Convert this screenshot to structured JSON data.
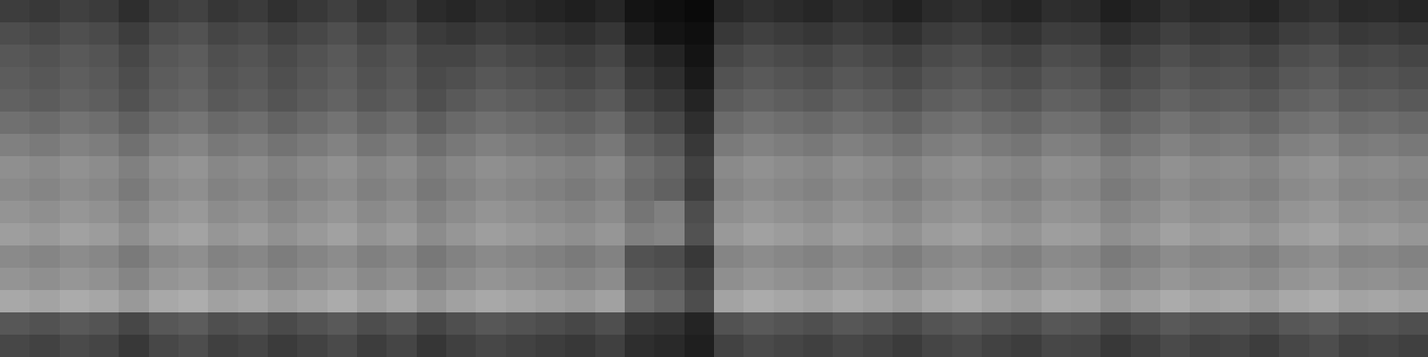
{
  "chart_data": {
    "type": "heatmap",
    "tick_labels": false,
    "zlim": [
      0,
      100
    ],
    "cells": [
      [
        24,
        22,
        25,
        23,
        18,
        24,
        26,
        21,
        23,
        19,
        22,
        25,
        20,
        23,
        17,
        15,
        18,
        16,
        14,
        12,
        15,
        8,
        6,
        4,
        16,
        19,
        17,
        15,
        18,
        16,
        13,
        17,
        19,
        16,
        14,
        18,
        17,
        12,
        15,
        19,
        16,
        17,
        14,
        18,
        20,
        16,
        17,
        15
      ],
      [
        30,
        28,
        31,
        29,
        24,
        30,
        32,
        27,
        29,
        25,
        28,
        31,
        26,
        29,
        23,
        21,
        24,
        22,
        20,
        18,
        21,
        12,
        8,
        6,
        22,
        25,
        23,
        21,
        24,
        22,
        19,
        23,
        25,
        22,
        20,
        24,
        23,
        18,
        21,
        25,
        22,
        23,
        20,
        24,
        26,
        22,
        23,
        21
      ],
      [
        34,
        32,
        35,
        33,
        28,
        34,
        36,
        31,
        33,
        29,
        32,
        35,
        30,
        33,
        27,
        27,
        30,
        28,
        26,
        24,
        27,
        18,
        14,
        8,
        28,
        31,
        29,
        27,
        30,
        28,
        25,
        29,
        31,
        28,
        26,
        30,
        29,
        24,
        27,
        31,
        28,
        29,
        26,
        30,
        32,
        28,
        29,
        27
      ],
      [
        36,
        34,
        37,
        35,
        30,
        36,
        38,
        33,
        35,
        31,
        34,
        37,
        32,
        35,
        29,
        31,
        34,
        32,
        30,
        28,
        31,
        22,
        18,
        10,
        32,
        35,
        33,
        31,
        34,
        32,
        29,
        33,
        35,
        32,
        30,
        34,
        33,
        28,
        31,
        35,
        32,
        33,
        30,
        34,
        36,
        32,
        33,
        31
      ],
      [
        38,
        36,
        39,
        37,
        32,
        38,
        40,
        35,
        37,
        33,
        36,
        39,
        34,
        37,
        31,
        35,
        38,
        36,
        34,
        32,
        35,
        26,
        22,
        14,
        36,
        39,
        37,
        35,
        38,
        36,
        33,
        37,
        39,
        36,
        34,
        38,
        37,
        32,
        35,
        39,
        36,
        37,
        34,
        38,
        40,
        36,
        37,
        35
      ],
      [
        44,
        42,
        45,
        43,
        38,
        44,
        46,
        41,
        43,
        39,
        42,
        45,
        40,
        43,
        37,
        41,
        44,
        42,
        40,
        38,
        41,
        32,
        28,
        18,
        42,
        45,
        43,
        41,
        44,
        42,
        39,
        43,
        45,
        42,
        40,
        44,
        43,
        38,
        41,
        45,
        42,
        43,
        40,
        44,
        46,
        42,
        43,
        41
      ],
      [
        50,
        48,
        51,
        49,
        44,
        50,
        52,
        47,
        49,
        45,
        48,
        51,
        46,
        49,
        43,
        47,
        50,
        48,
        46,
        44,
        47,
        38,
        34,
        22,
        48,
        51,
        49,
        47,
        50,
        48,
        45,
        49,
        51,
        48,
        46,
        50,
        49,
        44,
        47,
        51,
        48,
        49,
        46,
        50,
        52,
        48,
        49,
        47
      ],
      [
        56,
        54,
        57,
        55,
        50,
        56,
        58,
        53,
        55,
        51,
        54,
        57,
        52,
        55,
        49,
        53,
        56,
        54,
        52,
        50,
        53,
        44,
        40,
        26,
        54,
        57,
        55,
        53,
        56,
        54,
        51,
        55,
        57,
        54,
        52,
        56,
        55,
        50,
        53,
        57,
        54,
        55,
        52,
        56,
        58,
        54,
        55,
        53
      ],
      [
        54,
        52,
        55,
        53,
        48,
        54,
        56,
        51,
        53,
        49,
        52,
        55,
        50,
        53,
        47,
        51,
        54,
        52,
        50,
        48,
        51,
        42,
        38,
        24,
        52,
        55,
        53,
        51,
        54,
        52,
        49,
        53,
        55,
        52,
        50,
        54,
        53,
        48,
        51,
        55,
        52,
        53,
        50,
        54,
        56,
        52,
        53,
        51
      ],
      [
        58,
        56,
        59,
        57,
        52,
        58,
        60,
        55,
        57,
        53,
        56,
        59,
        54,
        57,
        51,
        55,
        58,
        56,
        54,
        52,
        55,
        46,
        50,
        30,
        56,
        59,
        57,
        55,
        58,
        56,
        53,
        57,
        59,
        56,
        54,
        58,
        57,
        52,
        55,
        59,
        56,
        57,
        54,
        58,
        60,
        56,
        57,
        55
      ],
      [
        62,
        60,
        63,
        61,
        56,
        62,
        64,
        59,
        61,
        57,
        60,
        63,
        58,
        61,
        55,
        59,
        62,
        60,
        58,
        56,
        59,
        50,
        52,
        32,
        60,
        63,
        61,
        59,
        62,
        60,
        57,
        61,
        63,
        60,
        58,
        62,
        61,
        56,
        59,
        63,
        60,
        61,
        58,
        62,
        64,
        60,
        61,
        59
      ],
      [
        54,
        52,
        55,
        53,
        48,
        54,
        56,
        51,
        53,
        49,
        52,
        55,
        50,
        53,
        47,
        51,
        54,
        52,
        50,
        48,
        51,
        32,
        30,
        22,
        52,
        55,
        53,
        51,
        54,
        52,
        49,
        53,
        55,
        52,
        50,
        54,
        53,
        48,
        51,
        55,
        52,
        53,
        50,
        54,
        56,
        52,
        53,
        51
      ],
      [
        58,
        56,
        59,
        57,
        52,
        58,
        60,
        55,
        57,
        53,
        56,
        59,
        54,
        57,
        51,
        55,
        58,
        56,
        54,
        52,
        55,
        36,
        34,
        26,
        56,
        59,
        57,
        55,
        58,
        56,
        53,
        57,
        59,
        56,
        54,
        58,
        57,
        52,
        55,
        59,
        56,
        57,
        54,
        58,
        60,
        56,
        57,
        55
      ],
      [
        66,
        64,
        67,
        65,
        60,
        66,
        68,
        63,
        65,
        61,
        64,
        67,
        62,
        65,
        59,
        63,
        66,
        64,
        62,
        60,
        63,
        44,
        40,
        30,
        64,
        67,
        65,
        63,
        66,
        64,
        61,
        65,
        67,
        64,
        62,
        66,
        65,
        60,
        63,
        67,
        64,
        65,
        62,
        66,
        68,
        64,
        65,
        63
      ],
      [
        34,
        32,
        35,
        33,
        28,
        34,
        36,
        31,
        33,
        29,
        32,
        35,
        30,
        33,
        27,
        31,
        34,
        32,
        30,
        28,
        31,
        22,
        20,
        14,
        32,
        35,
        33,
        31,
        34,
        32,
        29,
        33,
        35,
        32,
        30,
        34,
        33,
        28,
        31,
        35,
        32,
        33,
        30,
        34,
        36,
        32,
        33,
        31
      ],
      [
        28,
        26,
        29,
        27,
        22,
        28,
        30,
        25,
        27,
        23,
        26,
        29,
        24,
        27,
        21,
        25,
        28,
        26,
        24,
        22,
        25,
        18,
        16,
        12,
        26,
        29,
        27,
        25,
        28,
        26,
        23,
        27,
        29,
        26,
        24,
        28,
        27,
        22,
        25,
        29,
        26,
        27,
        24,
        28,
        30,
        26,
        27,
        25
      ]
    ]
  }
}
